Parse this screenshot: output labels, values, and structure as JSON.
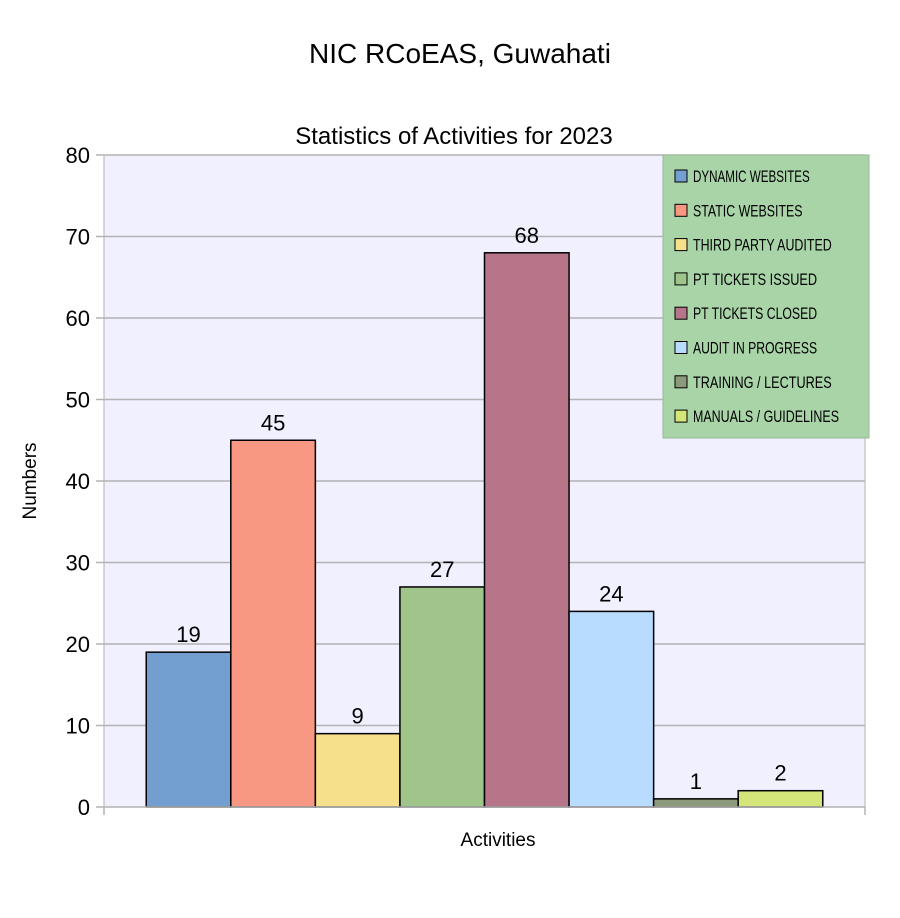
{
  "page_title": "NIC RCoEAS, Guwahati",
  "chart_data": {
    "type": "bar",
    "title": "Statistics of Activities for 2023",
    "xlabel": "Activities",
    "ylabel": "Numbers",
    "ylim": [
      0,
      80
    ],
    "yticks": [
      0,
      10,
      20,
      30,
      40,
      50,
      60,
      70,
      80
    ],
    "grid": true,
    "legend_position": "top-right",
    "series": [
      {
        "name": "DYNAMIC WEBSITES",
        "value": 19,
        "color": "#729fcf"
      },
      {
        "name": "STATIC WEBSITES",
        "value": 45,
        "color": "#f89882"
      },
      {
        "name": "THIRD PARTY AUDITED",
        "value": 9,
        "color": "#f7e08b"
      },
      {
        "name": "PT TICKETS ISSUED",
        "value": 27,
        "color": "#a0c58a"
      },
      {
        "name": "PT TICKETS CLOSED",
        "value": 68,
        "color": "#b77589"
      },
      {
        "name": "AUDIT IN PROGRESS",
        "value": 24,
        "color": "#b7dcff"
      },
      {
        "name": "TRAINING / LECTURES",
        "value": 1,
        "color": "#8a9a7a"
      },
      {
        "name": "MANUALS / GUIDELINES",
        "value": 2,
        "color": "#d4e57a"
      }
    ],
    "colors": {
      "plot_background": "#f0f0ff",
      "legend_background": "#a8d4a8",
      "gridline": "#b3b3b3"
    }
  }
}
